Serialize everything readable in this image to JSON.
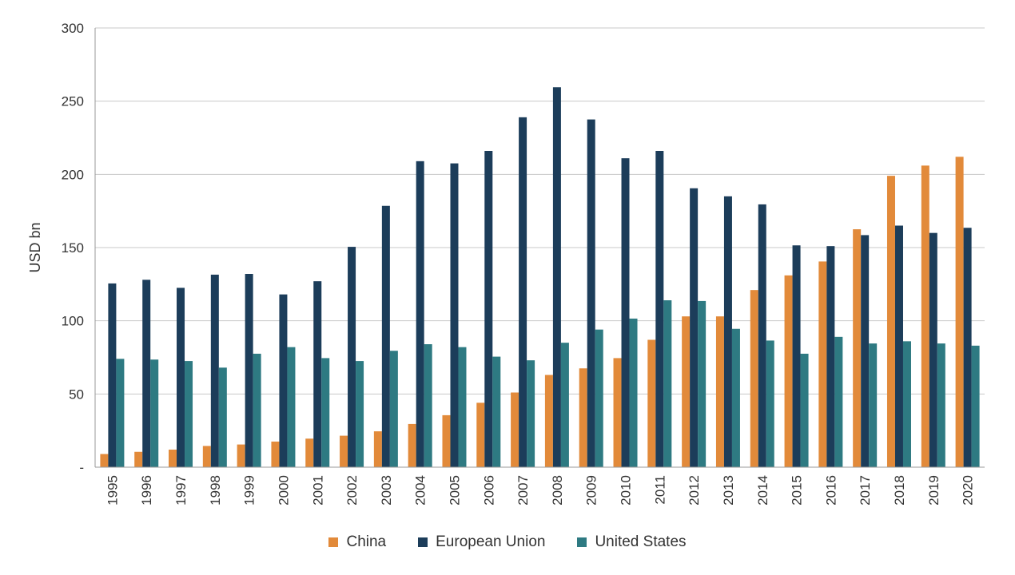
{
  "chart_data": {
    "type": "bar",
    "ylabel": "USD bn",
    "xlabel": "",
    "ylim": [
      0,
      300
    ],
    "yticks": [
      0,
      50,
      100,
      150,
      200,
      250,
      300
    ],
    "ytick_labels": [
      "-",
      "50",
      "100",
      "150",
      "200",
      "250",
      "300"
    ],
    "grid": true,
    "legend_position": "bottom",
    "categories": [
      "1995",
      "1996",
      "1997",
      "1998",
      "1999",
      "2000",
      "2001",
      "2002",
      "2003",
      "2004",
      "2005",
      "2006",
      "2007",
      "2008",
      "2009",
      "2010",
      "2011",
      "2012",
      "2013",
      "2014",
      "2015",
      "2016",
      "2017",
      "2018",
      "2019",
      "2020"
    ],
    "series": [
      {
        "name": "China",
        "color": "#e28a3a",
        "values": [
          9,
          10.5,
          12,
          14.5,
          15.5,
          17.5,
          19.5,
          21.5,
          24.5,
          29.5,
          35.5,
          44,
          51,
          63,
          67.5,
          74.5,
          87,
          103,
          103,
          121,
          131,
          140.5,
          162.5,
          199,
          206,
          212
        ]
      },
      {
        "name": "European Union",
        "color": "#1c3d5a",
        "values": [
          125.5,
          128,
          122.5,
          131.5,
          132,
          118,
          127,
          150.5,
          178.5,
          209,
          207.5,
          216,
          239,
          259.5,
          237.5,
          211,
          216,
          190.5,
          185,
          179.5,
          151.5,
          151,
          158.5,
          165,
          160,
          163.5
        ]
      },
      {
        "name": "United States",
        "color": "#2e7a82",
        "values": [
          74,
          73.5,
          72.5,
          68,
          77.5,
          82,
          74.5,
          72.5,
          79.5,
          84,
          82,
          75.5,
          73,
          85,
          94,
          101.5,
          114,
          113.5,
          94.5,
          86.5,
          77.5,
          89,
          84.5,
          86,
          84.5,
          83
        ]
      }
    ]
  }
}
